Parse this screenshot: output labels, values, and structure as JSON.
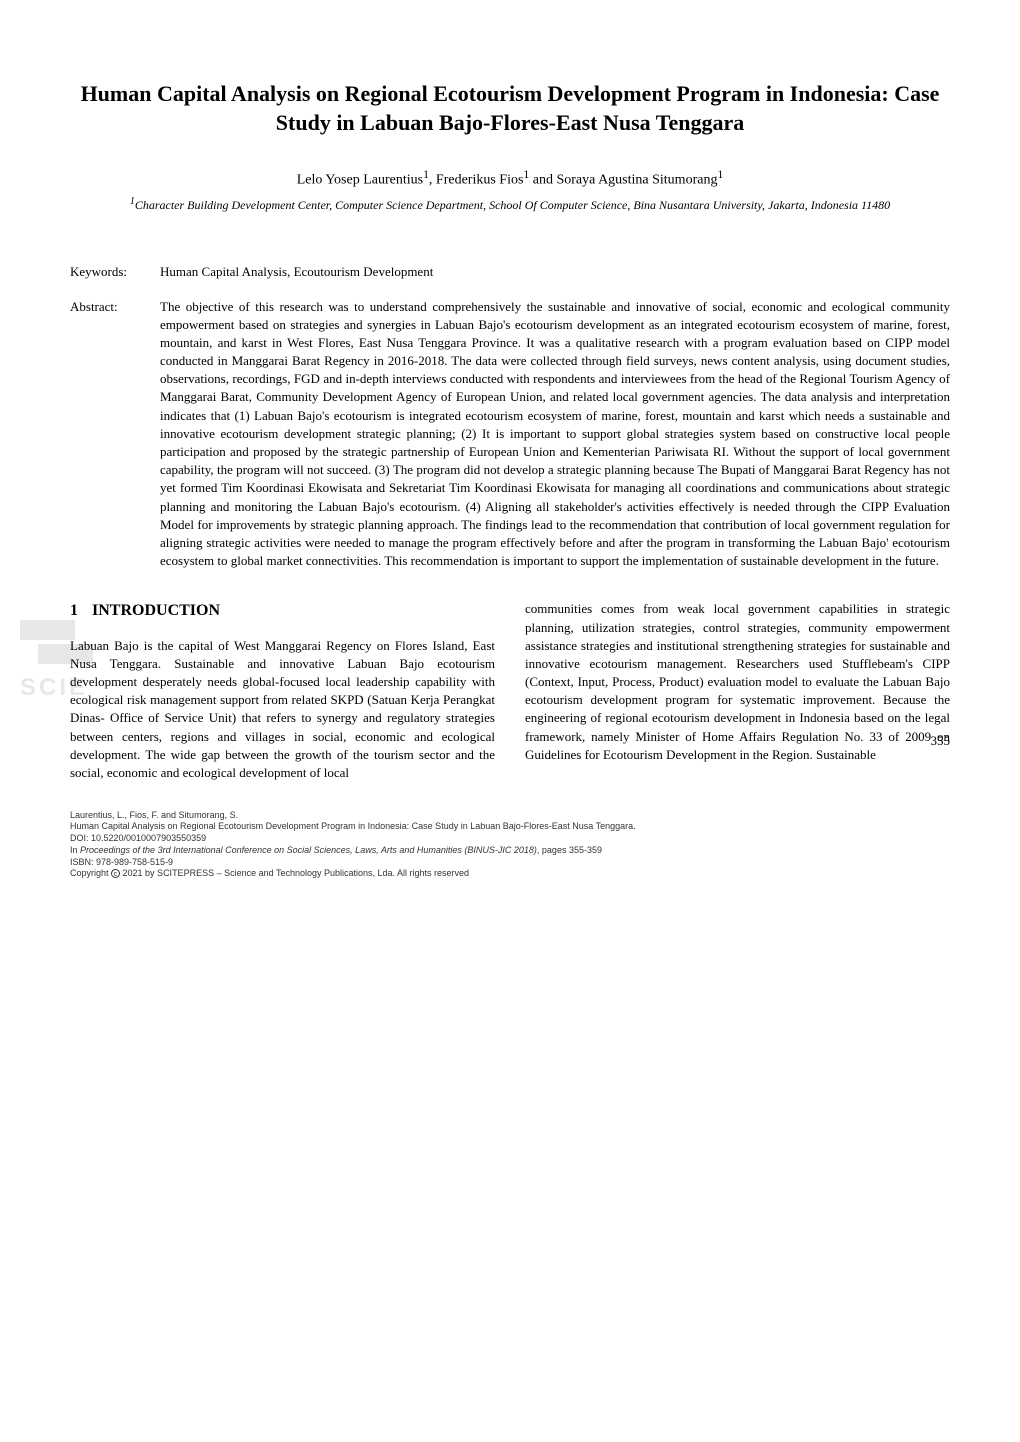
{
  "title": "Human Capital Analysis on Regional Ecotourism Development Program in Indonesia: Case Study in Labuan Bajo-Flores-East Nusa Tenggara",
  "authors_html": "Lelo Yosep Laurentius<sup>1</sup>, Frederikus Fios<sup>1</sup> and Soraya Agustina Situmorang<sup>1</sup>",
  "affiliation_html": "<sup>1</sup>Character Building Development Center, Computer Science Department, School Of Computer Science, Bina Nusantara University, Jakarta, Indonesia 11480",
  "keywords_label": "Keywords:",
  "keywords": "Human Capital Analysis, Ecoutourism Development",
  "abstract_label": "Abstract:",
  "abstract": "The objective of this research was to understand comprehensively the sustainable and innovative of social, economic and ecological community empowerment based on strategies and synergies in Labuan Bajo's ecotourism development as an integrated ecotourism ecosystem of marine, forest, mountain, and karst in West Flores, East Nusa Tenggara Province. It was a qualitative research with a program evaluation based on CIPP model conducted in Manggarai Barat Regency in 2016-2018.  The data were collected through field surveys, news content analysis, using document studies, observations, recordings, FGD and in-depth interviews conducted with respondents and interviewees from the head of the Regional Tourism Agency of Manggarai Barat, Community Development Agency of European Union, and related local government agencies. The data analysis and interpretation indicates that (1) Labuan Bajo's ecotourism is integrated ecotourism ecosystem of marine, forest, mountain and karst which needs a sustainable and innovative ecotourism development strategic planning; (2) It is important to support global strategies system based on constructive local people participation and proposed by the strategic partnership of European Union and Kementerian Pariwisata RI.  Without the support of local government capability, the program will not succeed. (3) The program did not develop a strategic planning because The Bupati of Manggarai Barat Regency has not yet formed Tim Koordinasi Ekowisata and Sekretariat Tim Koordinasi Ekowisata for managing all coordinations and communications about strategic planning and monitoring the Labuan Bajo's ecotourism. (4) Aligning all stakeholder's activities effectively is needed through the CIPP Evaluation Model for improvements by strategic planning approach. The findings lead to the recommendation that contribution of local government regulation for aligning strategic activities were needed to manage the program effectively before and after the program in transforming the Labuan Bajo' ecotourism ecosystem to global market connectivities. This recommendation is important to support the implementation of sustainable development in the future.",
  "watermark": "SCIE",
  "section": {
    "number": "1",
    "title": "INTRODUCTION"
  },
  "col1": "Labuan Bajo is the capital of West Manggarai Regency on Flores Island, East Nusa Tenggara. Sustainable and innovative Labuan Bajo ecotourism development desperately needs global-focused local leadership capability with ecological risk management support from related SKPD (Satuan Kerja Perangkat Dinas- Office of Service Unit) that refers to synergy and regulatory strategies between centers, regions and villages in social, economic and ecological development. The wide gap between the growth of the tourism sector and the social, economic and ecological development of local",
  "col2": "communities comes from weak local government capabilities in strategic planning, utilization strategies, control strategies, community empowerment assistance strategies and institutional strengthening strategies for sustainable and innovative ecotourism management. Researchers used Stufflebeam's CIPP (Context, Input, Process, Product) evaluation model to evaluate the Labuan Bajo ecotourism development program for systematic improvement. Because the engineering of regional ecotourism development in Indonesia based on the legal framework, namely Minister of Home Affairs Regulation No. 33 of 2009 on Guidelines for Ecotourism Development in the Region. Sustainable",
  "page_number": "355",
  "footer": {
    "line1": "Laurentius, L., Fios, F. and Situmorang, S.",
    "line2": "Human Capital Analysis on Regional Ecotourism Development Program in Indonesia: Case Study in Labuan Bajo-Flores-East Nusa Tenggara.",
    "line3": "DOI: 10.5220/0010007903550359",
    "line4_html": "In <i>Proceedings of the 3rd International Conference on Social Sciences, Laws, Arts and Humanities (BINUS-JIC 2018)</i>, pages 355-359",
    "line5": "ISBN: 978-989-758-515-9",
    "line6_html": "Copyright <span class='circled-c'>c</span> 2021 by SCITEPRESS – Science and Technology Publications, Lda. All rights reserved"
  }
}
